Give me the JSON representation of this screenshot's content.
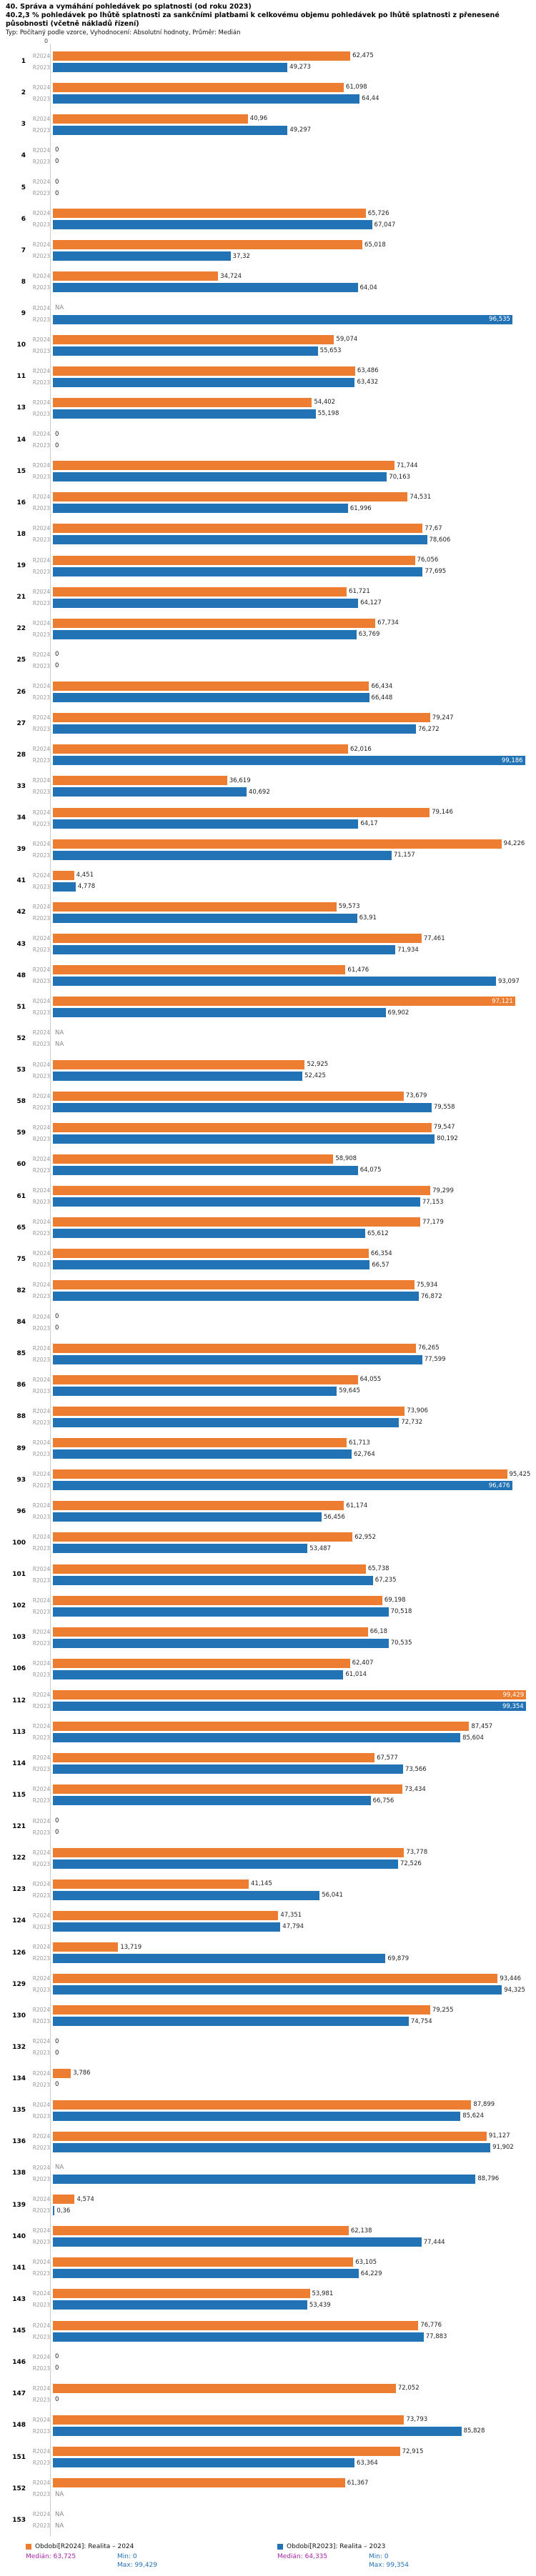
{
  "header": {
    "title": "40. Správa a vymáhání pohledávek po splatnosti (od roku 2023)",
    "subtitle": "40.2,3 % pohledávek po lhůtě splatnosti za sankčními platbami k celkovému objemu pohledávek po lhůtě splatnosti z přenesené působnosti (včetně nákladů řízení)",
    "meta": "Typ: Počítaný podle vzorce, Vyhodnocení: Absolutní hodnoty, Průměr: Medián"
  },
  "axis": {
    "origin_label": "0",
    "xmin": 0,
    "xmax": 100
  },
  "chart_data": {
    "type": "bar",
    "orientation": "horizontal",
    "value_format": "decimal-comma",
    "na_text": "NA",
    "categories": [
      "1",
      "2",
      "3",
      "4",
      "5",
      "6",
      "7",
      "8",
      "9",
      "10",
      "11",
      "13",
      "14",
      "15",
      "16",
      "18",
      "19",
      "21",
      "22",
      "25",
      "26",
      "27",
      "28",
      "33",
      "34",
      "39",
      "41",
      "42",
      "43",
      "48",
      "51",
      "52",
      "53",
      "58",
      "59",
      "60",
      "61",
      "65",
      "75",
      "82",
      "84",
      "85",
      "86",
      "88",
      "89",
      "93",
      "96",
      "100",
      "101",
      "102",
      "103",
      "106",
      "112",
      "113",
      "114",
      "115",
      "121",
      "122",
      "123",
      "124",
      "126",
      "129",
      "130",
      "132",
      "134",
      "135",
      "136",
      "138",
      "139",
      "140",
      "141",
      "143",
      "145",
      "146",
      "147",
      "148",
      "151",
      "152",
      "153"
    ],
    "series": [
      {
        "name": "R2024",
        "legend_label": "Období[R2024]: Realita – 2024",
        "color": "#ed7d31",
        "median_label": "Medián: 63,725",
        "min_label": "Min: 0",
        "max_label": "Max: 99,429",
        "values": [
          "62,475",
          "61,098",
          "40,96",
          "0",
          "0",
          "65,726",
          "65,018",
          "34,724",
          "NA",
          "59,074",
          "63,486",
          "54,402",
          "0",
          "71,744",
          "74,531",
          "77,67",
          "76,056",
          "61,721",
          "67,734",
          "0",
          "66,434",
          "79,247",
          "62,016",
          "36,619",
          "79,146",
          "94,226",
          "4,451",
          "59,573",
          "77,461",
          "61,476",
          "97,121",
          "NA",
          "52,925",
          "73,679",
          "79,547",
          "58,908",
          "79,299",
          "77,179",
          "66,354",
          "75,934",
          "0",
          "76,265",
          "64,055",
          "73,906",
          "61,713",
          "95,425",
          "61,174",
          "62,952",
          "65,738",
          "69,198",
          "66,18",
          "62,407",
          "99,429",
          "87,457",
          "67,577",
          "73,434",
          "0",
          "73,778",
          "41,145",
          "47,351",
          "13,719",
          "93,446",
          "79,255",
          "0",
          "3,786",
          "87,899",
          "91,127",
          "NA",
          "4,574",
          "62,138",
          "63,105",
          "53,981",
          "76,776",
          "0",
          "72,052",
          "73,793",
          "72,915",
          "61,367",
          "NA"
        ]
      },
      {
        "name": "R2023",
        "legend_label": "Období[R2023]: Realita – 2023",
        "color": "#2273b5",
        "median_label": "Medián: 64,335",
        "min_label": "Min: 0",
        "max_label": "Max: 99,354",
        "values": [
          "49,273",
          "64,44",
          "49,297",
          "0",
          "0",
          "67,047",
          "37,32",
          "64,04",
          "96,535",
          "55,653",
          "63,432",
          "55,198",
          "0",
          "70,163",
          "61,996",
          "78,606",
          "77,695",
          "64,127",
          "63,769",
          "0",
          "66,448",
          "76,272",
          "99,186",
          "40,692",
          "64,17",
          "71,157",
          "4,778",
          "63,91",
          "71,934",
          "93,097",
          "69,902",
          "NA",
          "52,425",
          "79,558",
          "80,192",
          "64,075",
          "77,153",
          "65,612",
          "66,57",
          "76,872",
          "0",
          "77,599",
          "59,645",
          "72,732",
          "62,764",
          "96,476",
          "56,456",
          "53,487",
          "67,235",
          "70,518",
          "70,535",
          "61,014",
          "99,354",
          "85,604",
          "73,566",
          "66,756",
          "0",
          "72,526",
          "56,041",
          "47,794",
          "69,879",
          "94,325",
          "74,754",
          "0",
          "0",
          "85,624",
          "91,902",
          "88,796",
          "0,36",
          "77,444",
          "64,229",
          "53,439",
          "77,883",
          "0",
          "0",
          "85,828",
          "63,364",
          "NA",
          "NA"
        ]
      }
    ]
  },
  "legend_colors": {
    "median_text": "#a626aa",
    "minmax_text": "#2273b5"
  }
}
